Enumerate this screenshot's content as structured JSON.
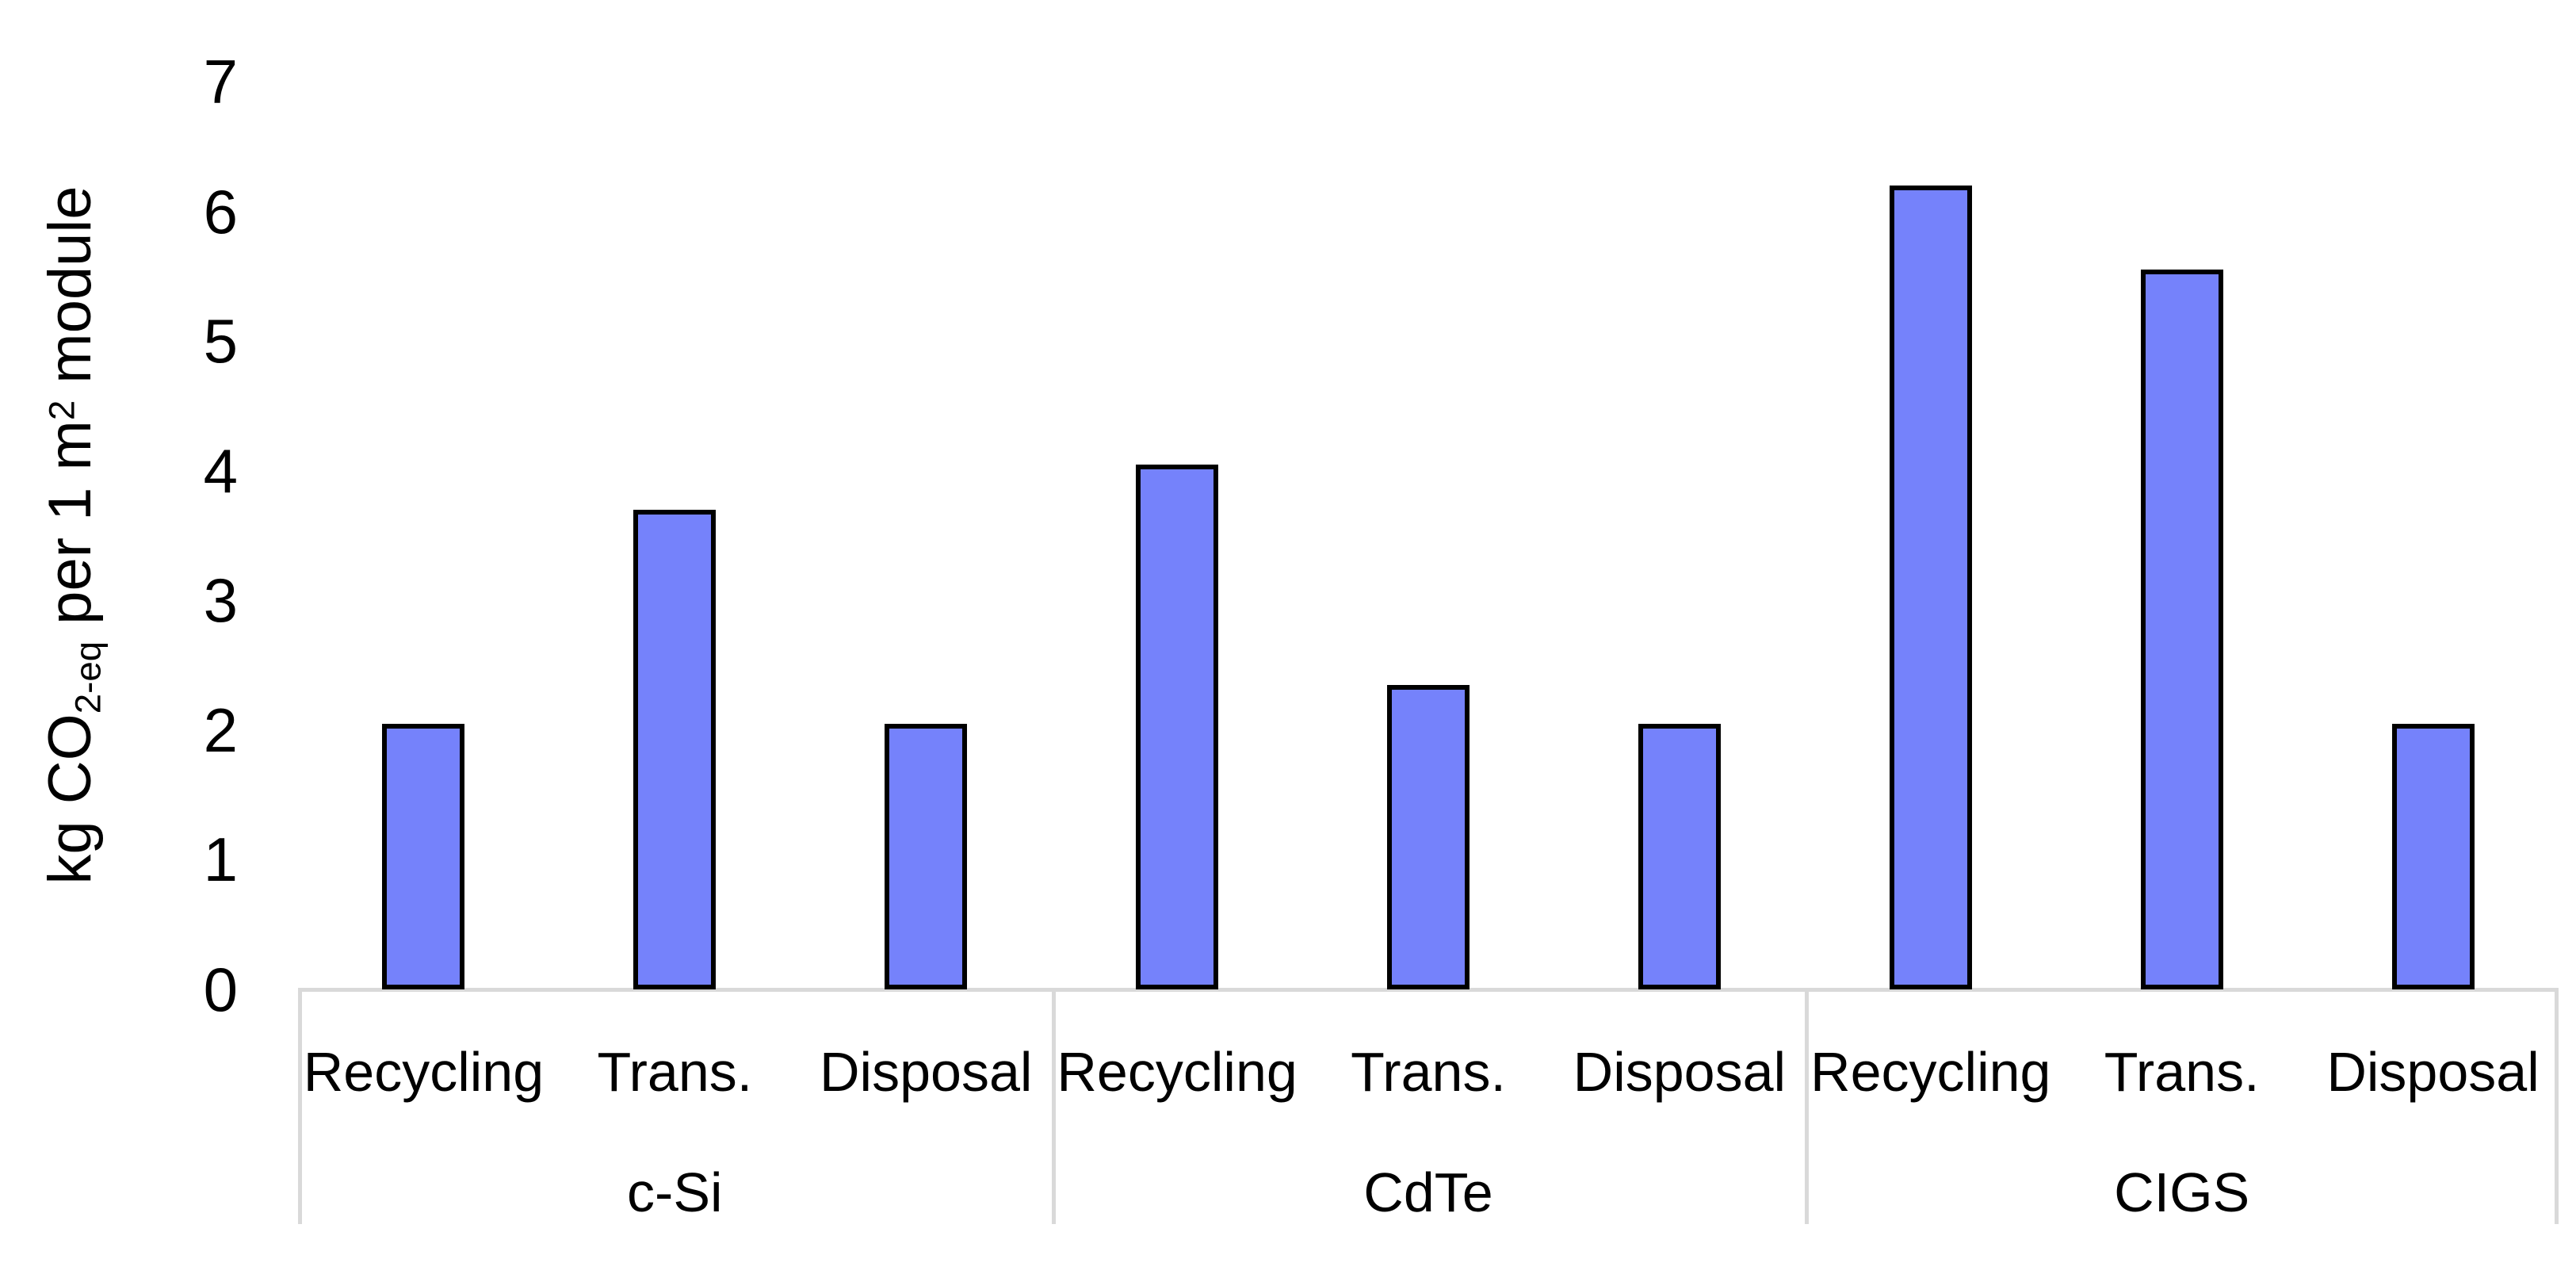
{
  "chart_data": {
    "type": "bar",
    "title": "",
    "ylabel": "kg CO2-eq per 1 m2 module",
    "ylabel_parts": {
      "prefix": "kg CO",
      "sub": "2-eq",
      "mid": " per 1 m",
      "sup": "2",
      "suffix": " module"
    },
    "ylim": [
      0,
      7
    ],
    "y_ticks": [
      0,
      1,
      2,
      3,
      4,
      5,
      6,
      7
    ],
    "grid": false,
    "legend": false,
    "groups": [
      {
        "label": "c-Si",
        "categories": [
          "Recycling",
          "Trans.",
          "Disposal"
        ],
        "values": [
          2.05,
          3.7,
          2.05
        ]
      },
      {
        "label": "CdTe",
        "categories": [
          "Recycling",
          "Trans.",
          "Disposal"
        ],
        "values": [
          4.05,
          2.35,
          2.05
        ]
      },
      {
        "label": "CIGS",
        "categories": [
          "Recycling",
          "Trans.",
          "Disposal"
        ],
        "values": [
          6.2,
          5.55,
          2.05
        ]
      }
    ],
    "colors": {
      "bar_fill": "#7582FB",
      "bar_border": "#000000",
      "axis_line": "#D9D9D9",
      "text": "#000000",
      "background": "#FFFFFF"
    }
  }
}
